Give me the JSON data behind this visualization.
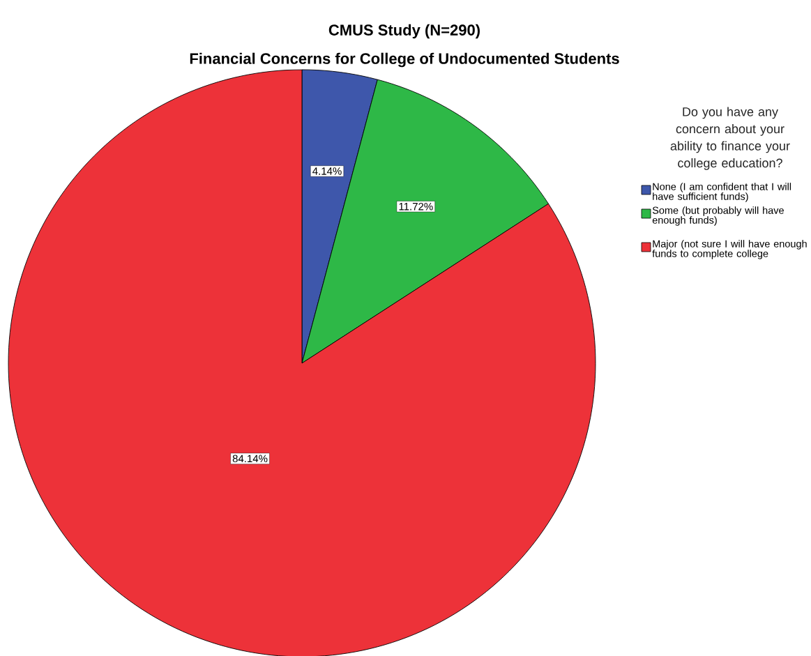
{
  "chart_data": {
    "type": "pie",
    "title": "CMUS Study (N=290)",
    "subtitle": "Financial Concerns for College of Undocumented Students",
    "legend_title": "Do you have any concern about your ability to finance your college education?",
    "categories": [
      "None (I am confident that I will have sufficient funds)",
      "Some (but probably will have enough funds)",
      "Major (not sure I will have enough funds to complete college"
    ],
    "values": [
      4.14,
      11.72,
      84.14
    ],
    "value_labels": [
      "4.14%",
      "11.72%",
      "84.14%"
    ],
    "colors": [
      "#3e57ab",
      "#2eb847",
      "#ed3239"
    ],
    "legend": "right"
  }
}
